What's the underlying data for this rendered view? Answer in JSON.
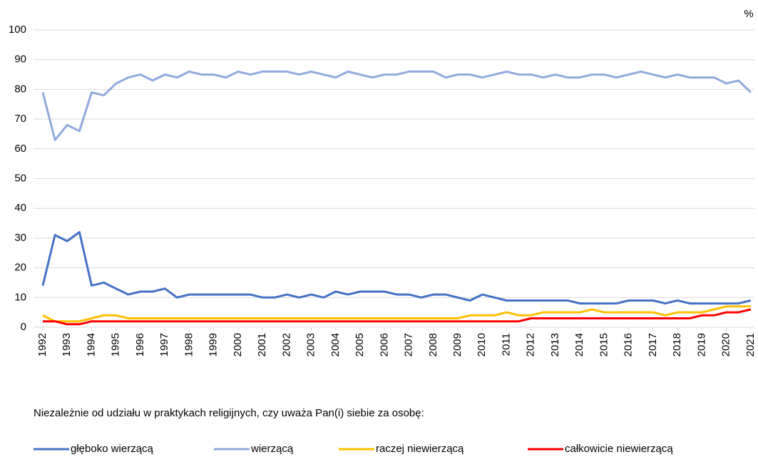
{
  "chart_data": {
    "type": "line",
    "unit_label": "%",
    "note": "Niezależnie od udziału w praktykach religijnych, czy uważa Pan(i) siebie za osobę:",
    "x": [
      1992,
      1992.5,
      1993,
      1993.5,
      1994,
      1994.5,
      1995,
      1995.5,
      1996,
      1996.5,
      1997,
      1997.5,
      1998,
      1998.5,
      1999,
      1999.5,
      2000,
      2000.5,
      2001,
      2001.5,
      2002,
      2002.5,
      2003,
      2003.5,
      2004,
      2004.5,
      2005,
      2005.5,
      2006,
      2006.5,
      2007,
      2007.5,
      2008,
      2008.5,
      2009,
      2009.5,
      2010,
      2010.5,
      2011,
      2011.5,
      2012,
      2012.5,
      2013,
      2013.5,
      2014,
      2014.5,
      2015,
      2015.5,
      2016,
      2016.5,
      2017,
      2017.5,
      2018,
      2018.5,
      2019,
      2019.5,
      2020,
      2020.5,
      2021
    ],
    "series": [
      {
        "name": "głęboko wierzącą",
        "color": "#4472c4",
        "values": [
          14,
          31,
          29,
          32,
          14,
          15,
          13,
          11,
          12,
          12,
          13,
          10,
          11,
          11,
          11,
          11,
          11,
          11,
          10,
          10,
          11,
          10,
          11,
          10,
          12,
          11,
          12,
          12,
          12,
          11,
          11,
          10,
          11,
          11,
          10,
          9,
          11,
          10,
          9,
          9,
          9,
          9,
          9,
          9,
          8,
          8,
          8,
          8,
          9,
          9,
          9,
          8,
          9,
          8,
          8,
          8,
          8,
          8,
          9
        ]
      },
      {
        "name": "wierzącą",
        "color": "#8faadc",
        "values": [
          79,
          63,
          68,
          66,
          79,
          78,
          82,
          84,
          85,
          83,
          85,
          84,
          86,
          85,
          85,
          84,
          86,
          85,
          86,
          86,
          86,
          85,
          86,
          85,
          84,
          86,
          85,
          84,
          85,
          85,
          86,
          86,
          86,
          84,
          85,
          85,
          84,
          85,
          86,
          85,
          85,
          84,
          85,
          84,
          84,
          85,
          85,
          84,
          85,
          86,
          85,
          84,
          85,
          84,
          84,
          84,
          82,
          83,
          79
        ]
      },
      {
        "name": "raczej niewierzącą",
        "color": "#ffc000",
        "values": [
          4,
          2,
          2,
          2,
          3,
          4,
          4,
          3,
          3,
          3,
          3,
          3,
          3,
          3,
          3,
          3,
          3,
          3,
          3,
          3,
          3,
          3,
          3,
          3,
          3,
          3,
          3,
          3,
          3,
          3,
          3,
          3,
          3,
          3,
          3,
          4,
          4,
          4,
          5,
          4,
          4,
          5,
          5,
          5,
          5,
          6,
          5,
          5,
          5,
          5,
          5,
          4,
          5,
          5,
          5,
          6,
          7,
          7,
          7
        ]
      },
      {
        "name": "całkowicie niewierzącą",
        "color": "#ff0000",
        "values": [
          2,
          2,
          1,
          1,
          2,
          2,
          2,
          2,
          2,
          2,
          2,
          2,
          2,
          2,
          2,
          2,
          2,
          2,
          2,
          2,
          2,
          2,
          2,
          2,
          2,
          2,
          2,
          2,
          2,
          2,
          2,
          2,
          2,
          2,
          2,
          2,
          2,
          2,
          2,
          2,
          3,
          3,
          3,
          3,
          3,
          3,
          3,
          3,
          3,
          3,
          3,
          3,
          3,
          3,
          4,
          4,
          5,
          5,
          6
        ]
      }
    ],
    "xlim": [
      1992,
      2021.15
    ],
    "xticks": [
      1992,
      1993,
      1994,
      1995,
      1996,
      1997,
      1998,
      1999,
      2000,
      2001,
      2002,
      2003,
      2004,
      2005,
      2006,
      2007,
      2008,
      2009,
      2010,
      2011,
      2012,
      2013,
      2014,
      2015,
      2016,
      2017,
      2018,
      2019,
      2020,
      2021
    ],
    "ylim": [
      0,
      100
    ],
    "yticks": [
      0,
      10,
      20,
      30,
      40,
      50,
      60,
      70,
      80,
      90,
      100
    ],
    "grid": true
  }
}
